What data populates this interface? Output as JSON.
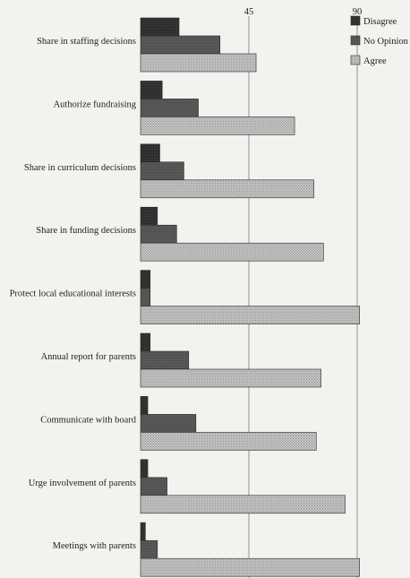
{
  "chart_data": {
    "type": "bar",
    "orientation": "horizontal",
    "categories": [
      "Share in staffing decisions",
      "Authorize fundraising",
      "Share in curriculum decisions",
      "Share in funding decisions",
      "Protect local educational interests",
      "Annual report for parents",
      "Communicate with board",
      "Urge involvement of parents",
      "Meetings with parents"
    ],
    "series": [
      {
        "name": "Disagree",
        "values": [
          16,
          9,
          8,
          7,
          4,
          4,
          3,
          3,
          2
        ]
      },
      {
        "name": "No Opinion",
        "values": [
          33,
          24,
          18,
          15,
          4,
          20,
          23,
          11,
          7
        ]
      },
      {
        "name": "Agree",
        "values": [
          48,
          64,
          72,
          76,
          91,
          75,
          73,
          85,
          91
        ]
      }
    ],
    "xticks": [
      45,
      90
    ],
    "xlim": [
      0,
      95
    ],
    "grid": true,
    "legend_position": "top-right",
    "colors": {
      "Disagree": "#2b2b2b",
      "No Opinion": "#575757",
      "Agree": "#b8b8b8",
      "background": "#f3f2ef",
      "text": "#1e1e1e",
      "gridline": "#7a7a7a"
    }
  }
}
